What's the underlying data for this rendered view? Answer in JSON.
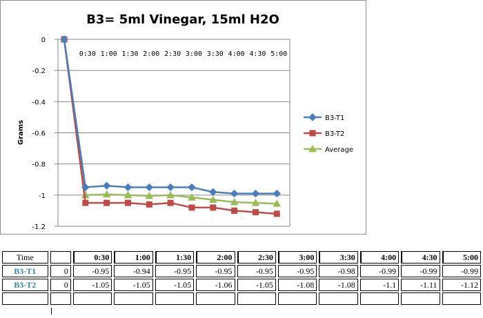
{
  "chart_data": {
    "type": "line",
    "title": "B3= 5ml Vinegar, 15ml H2O",
    "xlabel": "",
    "ylabel": "Grams",
    "categories": [
      "",
      "0:30",
      "1:00",
      "1:30",
      "2:00",
      "2:30",
      "3:00",
      "3:30",
      "4:00",
      "4:30",
      "5:00"
    ],
    "ylim": [
      -1.2,
      0
    ],
    "yticks": [
      0,
      -0.2,
      -0.4,
      -0.6,
      -0.8,
      -1,
      -1.2
    ],
    "ytick_labels": [
      "0",
      "-0.2",
      "-0.4",
      "-0.6",
      "-0.8",
      "-1",
      "-1.2"
    ],
    "grid": true,
    "legend": "right",
    "series": [
      {
        "name": "B3-T1",
        "color": "#4a7ebb",
        "marker": "diamond",
        "values": [
          0,
          -0.95,
          -0.94,
          -0.95,
          -0.95,
          -0.95,
          -0.95,
          -0.98,
          -0.99,
          -0.99,
          -0.99
        ]
      },
      {
        "name": "B3-T2",
        "color": "#be4b48",
        "marker": "square",
        "values": [
          0,
          -1.05,
          -1.05,
          -1.05,
          -1.06,
          -1.05,
          -1.08,
          -1.08,
          -1.1,
          -1.11,
          -1.12
        ]
      },
      {
        "name": "Average",
        "color": "#9bbb59",
        "marker": "triangle",
        "values": [
          0,
          -1.0,
          -0.995,
          -1.0,
          -1.005,
          -1.0,
          -1.015,
          -1.03,
          -1.045,
          -1.05,
          -1.055
        ]
      }
    ]
  },
  "table": {
    "header": {
      "label": "Time",
      "times": [
        "0:30",
        "1:00",
        "1:30",
        "2:00",
        "2:30",
        "3:00",
        "3:30",
        "4:00",
        "4:30",
        "5:00"
      ]
    },
    "rows": [
      {
        "label": "B3-T1",
        "first": "0",
        "values": [
          "-0.95",
          "-0.94",
          "-0.95",
          "-0.95",
          "-0.95",
          "-0.95",
          "-0.98",
          "-0.99",
          "-0.99",
          "-0.99"
        ]
      },
      {
        "label": "B3-T2",
        "first": "0",
        "values": [
          "-1.05",
          "-1.05",
          "-1.05",
          "-1.06",
          "-1.05",
          "-1.08",
          "-1.08",
          "-1.1",
          "-1.11",
          "-1.12"
        ]
      }
    ]
  }
}
